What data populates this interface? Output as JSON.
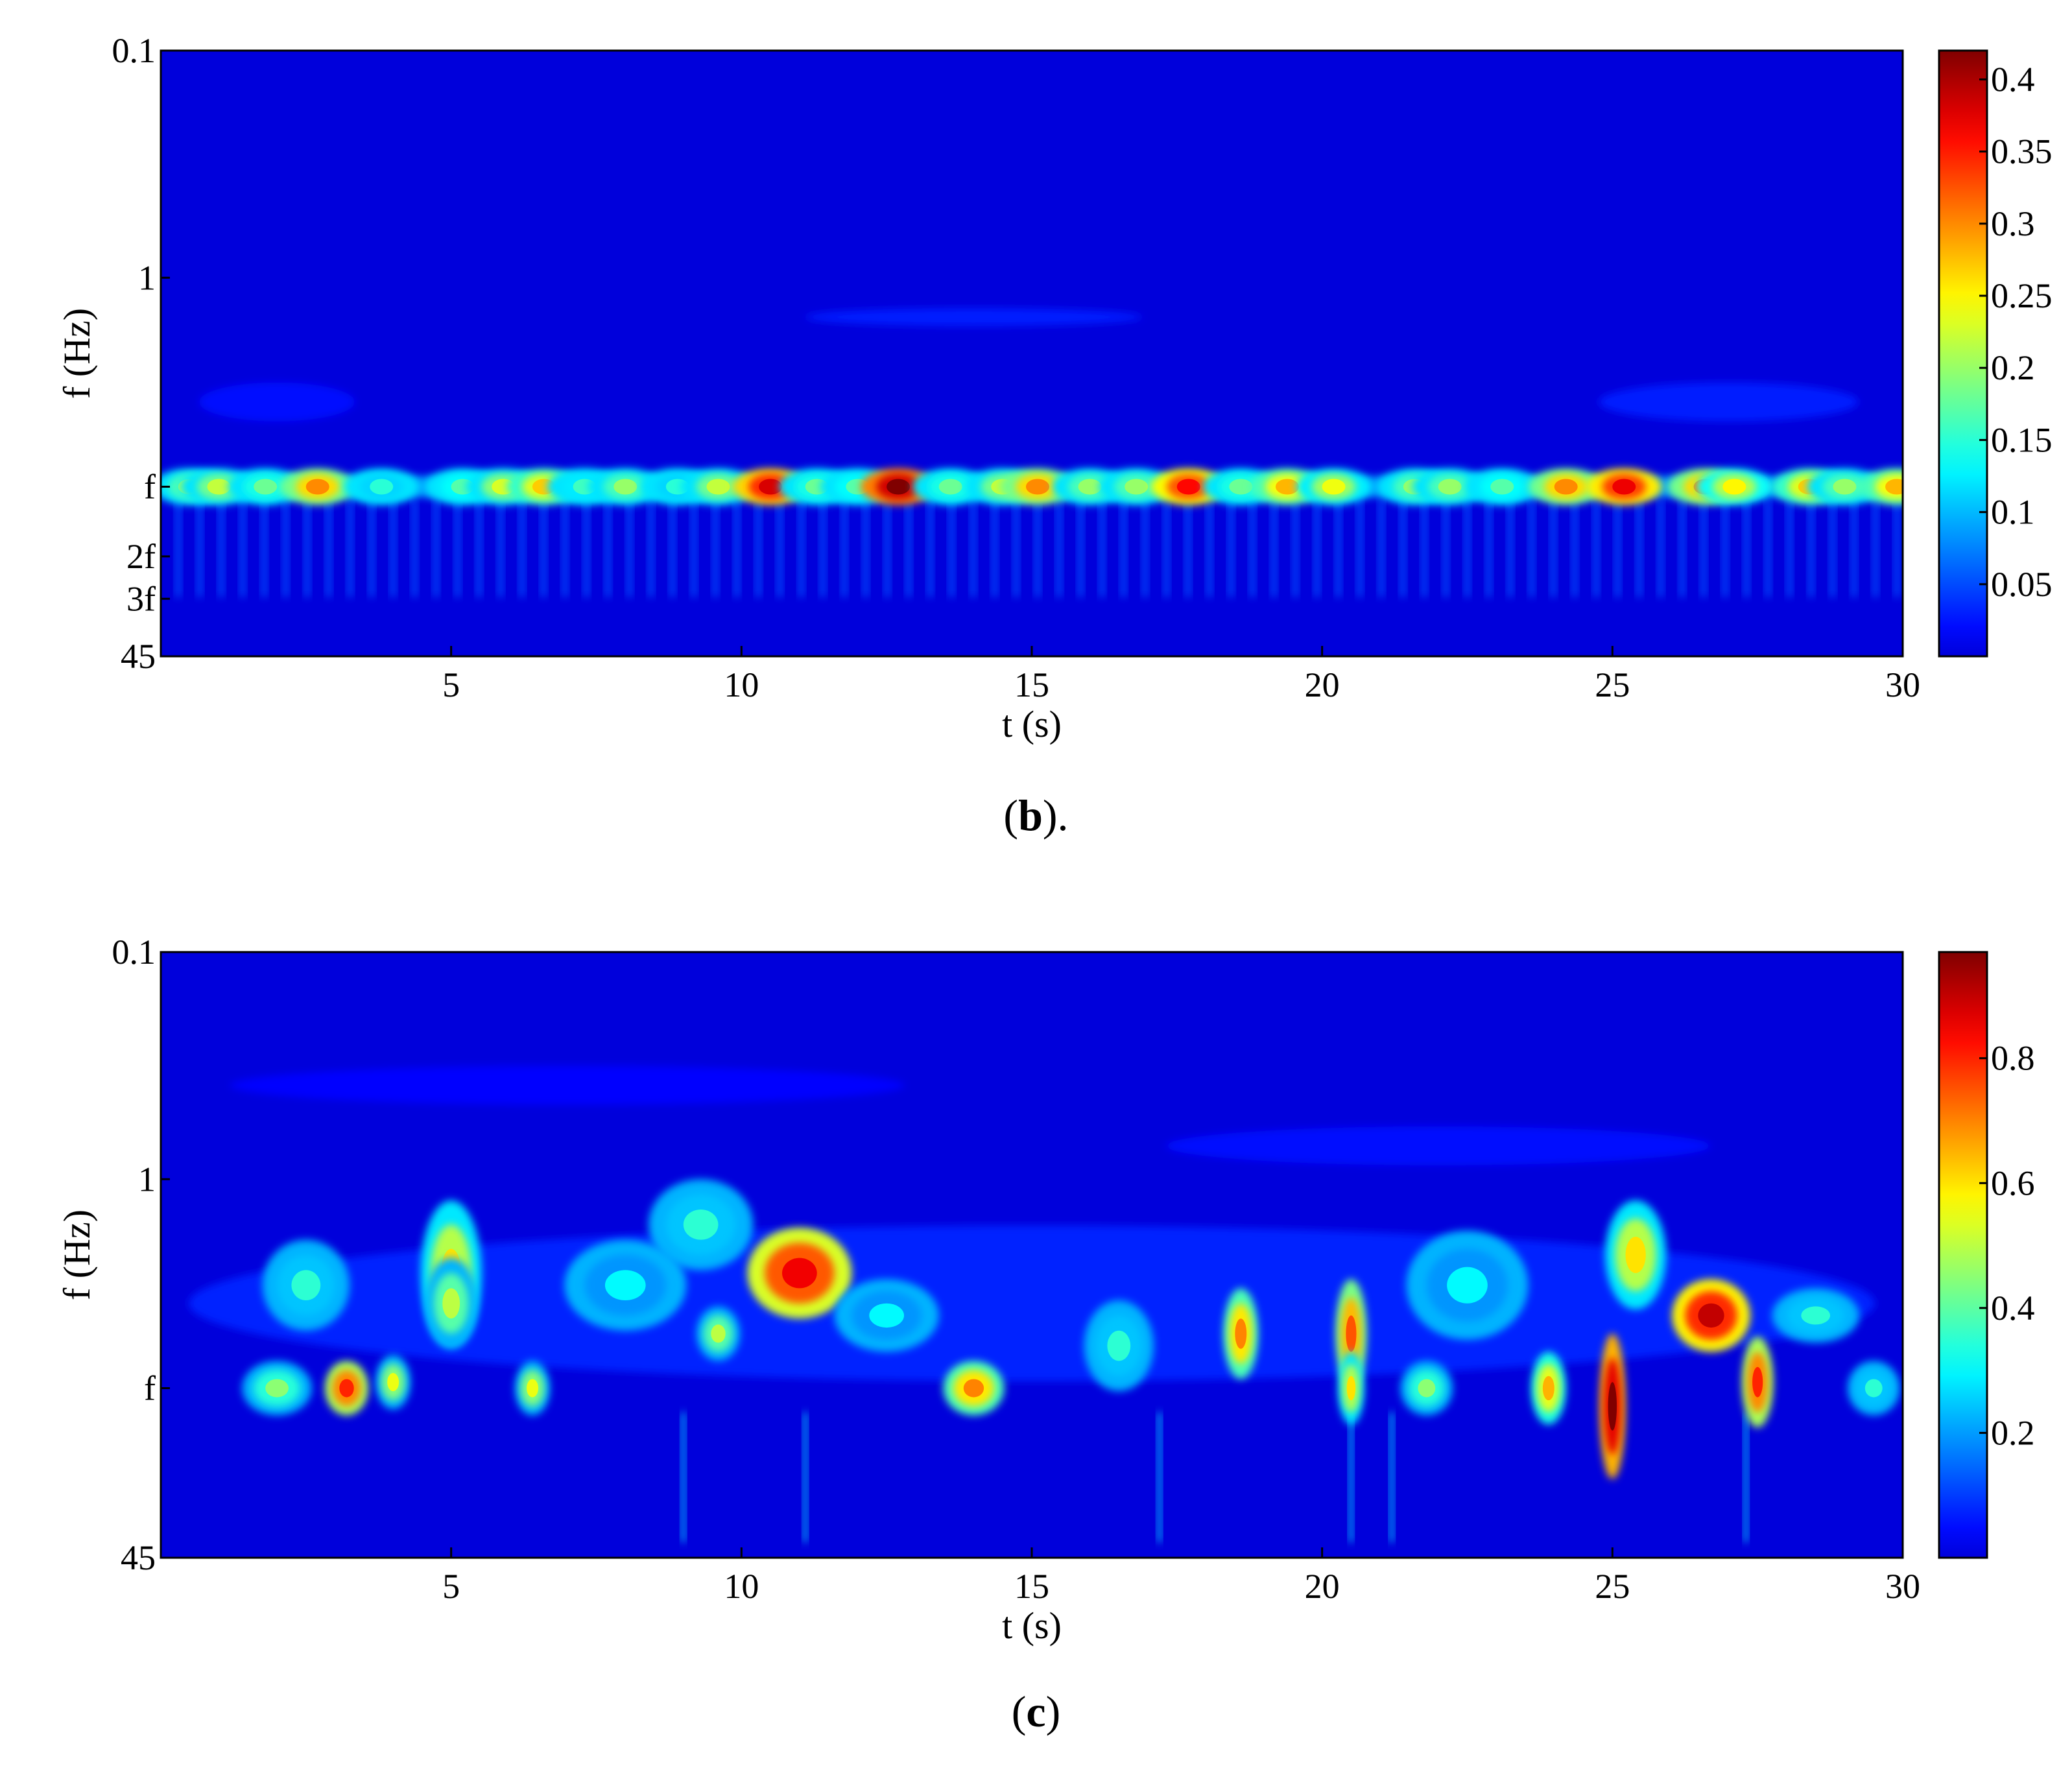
{
  "chart_data": [
    {
      "type": "heatmap",
      "panel": "b",
      "caption": {
        "pre": "(",
        "letter": "b",
        "post": ")."
      },
      "xlabel": "t (s)",
      "ylabel": "f (Hz)",
      "xlim": [
        0,
        30
      ],
      "x_ticks": [
        5,
        10,
        15,
        20,
        25,
        30
      ],
      "yscale": "log",
      "y_tick_labels": [
        "0.1",
        "1",
        "f",
        "2f",
        "3f",
        "45"
      ],
      "colorbar": {
        "range": [
          0,
          0.42
        ],
        "ticks": [
          "0.05",
          "0.1",
          "0.15",
          "0.2",
          "0.25",
          "0.3",
          "0.35",
          "0.4"
        ],
        "colormap": "jet"
      },
      "grid": false,
      "features": {
        "band": "f",
        "description_free": true,
        "hotspots": [
          {
            "t": 0.5,
            "level": 0.2
          },
          {
            "t": 1.0,
            "level": 0.22
          },
          {
            "t": 1.8,
            "level": 0.18
          },
          {
            "t": 2.7,
            "level": 0.3
          },
          {
            "t": 3.8,
            "level": 0.15
          },
          {
            "t": 5.2,
            "level": 0.17
          },
          {
            "t": 5.9,
            "level": 0.23
          },
          {
            "t": 6.6,
            "level": 0.27
          },
          {
            "t": 7.3,
            "level": 0.16
          },
          {
            "t": 8.0,
            "level": 0.2
          },
          {
            "t": 8.9,
            "level": 0.15
          },
          {
            "t": 9.6,
            "level": 0.22
          },
          {
            "t": 10.5,
            "level": 0.38
          },
          {
            "t": 11.3,
            "level": 0.18
          },
          {
            "t": 12.0,
            "level": 0.17
          },
          {
            "t": 12.7,
            "level": 0.42
          },
          {
            "t": 13.6,
            "level": 0.18
          },
          {
            "t": 14.5,
            "level": 0.22
          },
          {
            "t": 15.1,
            "level": 0.3
          },
          {
            "t": 16.0,
            "level": 0.2
          },
          {
            "t": 16.8,
            "level": 0.2
          },
          {
            "t": 17.7,
            "level": 0.36
          },
          {
            "t": 18.6,
            "level": 0.18
          },
          {
            "t": 19.4,
            "level": 0.28
          },
          {
            "t": 20.2,
            "level": 0.24
          },
          {
            "t": 21.6,
            "level": 0.2
          },
          {
            "t": 22.2,
            "level": 0.2
          },
          {
            "t": 23.1,
            "level": 0.17
          },
          {
            "t": 24.2,
            "level": 0.3
          },
          {
            "t": 25.2,
            "level": 0.37
          },
          {
            "t": 26.6,
            "level": 0.3
          },
          {
            "t": 27.1,
            "level": 0.25
          },
          {
            "t": 28.4,
            "level": 0.27
          },
          {
            "t": 29.0,
            "level": 0.2
          },
          {
            "t": 29.9,
            "level": 0.28
          }
        ]
      }
    },
    {
      "type": "heatmap",
      "panel": "c",
      "caption": {
        "pre": "(",
        "letter": "c",
        "post": ")"
      },
      "xlabel": "t (s)",
      "ylabel": "f (Hz)",
      "xlim": [
        0,
        30
      ],
      "x_ticks": [
        5,
        10,
        15,
        20,
        25,
        30
      ],
      "yscale": "log",
      "y_tick_labels": [
        "0.1",
        "1",
        "f",
        "45"
      ],
      "colorbar": {
        "range": [
          0,
          0.97
        ],
        "ticks": [
          "0.2",
          "0.4",
          "0.6",
          "0.8"
        ],
        "colormap": "jet"
      },
      "grid": false,
      "features": {
        "hotspots": [
          {
            "t": 3.2,
            "pos": 0.72,
            "level": 0.8,
            "rx": 0.25,
            "ry": 0.03
          },
          {
            "t": 4.0,
            "pos": 0.71,
            "level": 0.55,
            "rx": 0.2,
            "ry": 0.03
          },
          {
            "t": 5.0,
            "pos": 0.53,
            "level": 0.6,
            "rx": 0.35,
            "ry": 0.08
          },
          {
            "t": 5.0,
            "pos": 0.58,
            "level": 0.5,
            "rx": 0.3,
            "ry": 0.05
          },
          {
            "t": 6.4,
            "pos": 0.72,
            "level": 0.55,
            "rx": 0.2,
            "ry": 0.03
          },
          {
            "t": 9.3,
            "pos": 0.45,
            "level": 0.35,
            "rx": 0.6,
            "ry": 0.05
          },
          {
            "t": 9.6,
            "pos": 0.63,
            "level": 0.5,
            "rx": 0.25,
            "ry": 0.03
          },
          {
            "t": 11.0,
            "pos": 0.53,
            "level": 0.85,
            "rx": 0.6,
            "ry": 0.05
          },
          {
            "t": 14.0,
            "pos": 0.72,
            "level": 0.7,
            "rx": 0.35,
            "ry": 0.03
          },
          {
            "t": 18.6,
            "pos": 0.63,
            "level": 0.7,
            "rx": 0.2,
            "ry": 0.05
          },
          {
            "t": 20.5,
            "pos": 0.63,
            "level": 0.75,
            "rx": 0.18,
            "ry": 0.06
          },
          {
            "t": 20.5,
            "pos": 0.72,
            "level": 0.6,
            "rx": 0.15,
            "ry": 0.04
          },
          {
            "t": 23.9,
            "pos": 0.72,
            "level": 0.65,
            "rx": 0.2,
            "ry": 0.04
          },
          {
            "t": 25.0,
            "pos": 0.75,
            "level": 0.97,
            "rx": 0.15,
            "ry": 0.08
          },
          {
            "t": 25.4,
            "pos": 0.5,
            "level": 0.6,
            "rx": 0.35,
            "ry": 0.06
          },
          {
            "t": 26.7,
            "pos": 0.6,
            "level": 0.9,
            "rx": 0.45,
            "ry": 0.04
          },
          {
            "t": 27.5,
            "pos": 0.71,
            "level": 0.8,
            "rx": 0.18,
            "ry": 0.05
          },
          {
            "t": 28.5,
            "pos": 0.6,
            "level": 0.35,
            "rx": 0.5,
            "ry": 0.03
          },
          {
            "t": 2.5,
            "pos": 0.55,
            "level": 0.35,
            "rx": 0.5,
            "ry": 0.05
          },
          {
            "t": 2.0,
            "pos": 0.72,
            "level": 0.45,
            "rx": 0.4,
            "ry": 0.03
          },
          {
            "t": 8.0,
            "pos": 0.55,
            "level": 0.3,
            "rx": 0.7,
            "ry": 0.05
          },
          {
            "t": 12.5,
            "pos": 0.6,
            "level": 0.3,
            "rx": 0.6,
            "ry": 0.04
          },
          {
            "t": 16.5,
            "pos": 0.65,
            "level": 0.35,
            "rx": 0.4,
            "ry": 0.05
          },
          {
            "t": 22.5,
            "pos": 0.55,
            "level": 0.3,
            "rx": 0.7,
            "ry": 0.06
          },
          {
            "t": 21.8,
            "pos": 0.72,
            "level": 0.45,
            "rx": 0.3,
            "ry": 0.03
          },
          {
            "t": 29.5,
            "pos": 0.72,
            "level": 0.35,
            "rx": 0.3,
            "ry": 0.03
          }
        ]
      }
    }
  ]
}
